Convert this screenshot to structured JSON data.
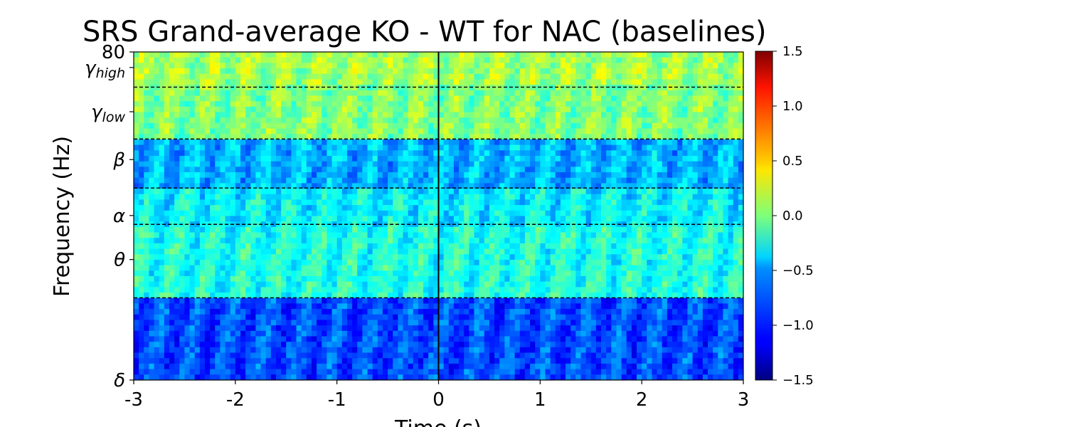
{
  "chart_data": {
    "type": "heatmap",
    "title": "SRS Grand-average KO - WT for NAC (baselines)",
    "xlabel": "Time (s)",
    "ylabel": "Frequency (Hz)",
    "xlim": [
      -3,
      3
    ],
    "ylim": [
      1,
      80
    ],
    "x_ticks": [
      {
        "value": -3,
        "label": "-3"
      },
      {
        "value": -2,
        "label": "-2"
      },
      {
        "value": -1,
        "label": "-1"
      },
      {
        "value": 0,
        "label": "0"
      },
      {
        "value": 1,
        "label": "1"
      },
      {
        "value": 2,
        "label": "2"
      },
      {
        "value": 3,
        "label": "3"
      }
    ],
    "y_ticks": [
      {
        "value": 80,
        "label": "80"
      },
      {
        "value": 65,
        "label": "γ",
        "sub": "high"
      },
      {
        "value": 36,
        "label": "γ",
        "sub": "low"
      },
      {
        "value": 19,
        "label": "β"
      },
      {
        "value": 9,
        "label": "α"
      },
      {
        "value": 5,
        "label": "θ"
      },
      {
        "value": 1,
        "label": "δ"
      }
    ],
    "band_boundaries": [
      50,
      25,
      13,
      8,
      3
    ],
    "event_line_x": 0,
    "colormap": "jet",
    "colorbar": {
      "vmin": -1.5,
      "vmax": 1.5,
      "ticks": [
        {
          "value": 1.5,
          "label": "1.5"
        },
        {
          "value": 1.0,
          "label": "1.0"
        },
        {
          "value": 0.5,
          "label": "0.5"
        },
        {
          "value": 0.0,
          "label": "0.0"
        },
        {
          "value": -0.5,
          "label": "−0.5"
        },
        {
          "value": -1.0,
          "label": "−1.0"
        },
        {
          "value": -1.5,
          "label": "−1.5"
        }
      ]
    },
    "band_mean_values": [
      {
        "band": "δ",
        "range_hz": [
          1,
          3
        ],
        "approx_value": -0.9
      },
      {
        "band": "θ",
        "range_hz": [
          3,
          8
        ],
        "approx_value": -0.3
      },
      {
        "band": "α",
        "range_hz": [
          8,
          13
        ],
        "approx_value": -0.4
      },
      {
        "band": "β",
        "range_hz": [
          13,
          25
        ],
        "approx_value": -0.6
      },
      {
        "band": "γlow",
        "range_hz": [
          25,
          50
        ],
        "approx_value": 0.0
      },
      {
        "band": "γhigh",
        "range_hz": [
          50,
          80
        ],
        "approx_value": 0.1
      }
    ]
  }
}
